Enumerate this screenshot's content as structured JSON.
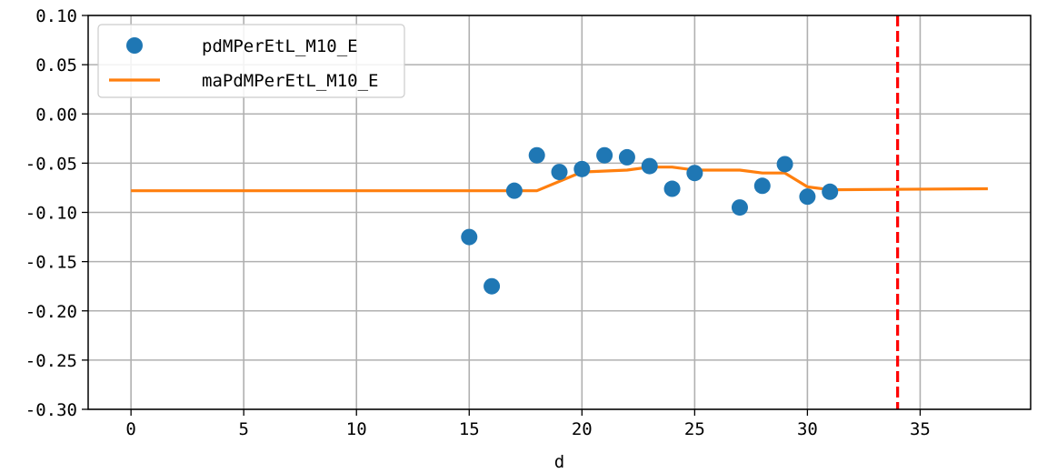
{
  "chart_data": {
    "type": "scatter",
    "title": "",
    "xlabel": "d",
    "ylabel": "",
    "xlim": [
      -1.9,
      39.9
    ],
    "ylim": [
      -0.3,
      0.1
    ],
    "xticks": [
      0,
      5,
      10,
      15,
      20,
      25,
      30,
      35
    ],
    "yticks": [
      0.1,
      0.05,
      0.0,
      -0.05,
      -0.1,
      -0.15,
      -0.2,
      -0.25,
      -0.3
    ],
    "x_tick_labels": [
      "0",
      "5",
      "10",
      "15",
      "20",
      "25",
      "30",
      "35"
    ],
    "y_tick_labels": [
      "0.10",
      "0.05",
      "0.00",
      "-0.05",
      "-0.10",
      "-0.15",
      "-0.20",
      "-0.25",
      "-0.30"
    ],
    "grid": true,
    "legend_position": "top-left",
    "series": [
      {
        "name": "pdMPerEtL_M10_E",
        "kind": "scatter",
        "color": "#1f77b4",
        "x": [
          15,
          16,
          17,
          18,
          19,
          20,
          21,
          22,
          23,
          24,
          25,
          27,
          28,
          29,
          30,
          31
        ],
        "y": [
          -0.125,
          -0.175,
          -0.078,
          -0.042,
          -0.059,
          -0.056,
          -0.042,
          -0.044,
          -0.053,
          -0.076,
          -0.06,
          -0.095,
          -0.073,
          -0.051,
          -0.084,
          -0.079
        ]
      },
      {
        "name": "maPdMPerEtL_M10_E",
        "kind": "line",
        "color": "#ff7f0e",
        "x": [
          0,
          18,
          20,
          22,
          23,
          24,
          25,
          27,
          28,
          29,
          30,
          31,
          38
        ],
        "y": [
          -0.078,
          -0.078,
          -0.059,
          -0.057,
          -0.054,
          -0.054,
          -0.057,
          -0.057,
          -0.06,
          -0.06,
          -0.074,
          -0.077,
          -0.076
        ]
      }
    ],
    "annotations": [
      {
        "type": "vline",
        "x": 34,
        "color": "#ff0000",
        "style": "dashed"
      }
    ]
  }
}
